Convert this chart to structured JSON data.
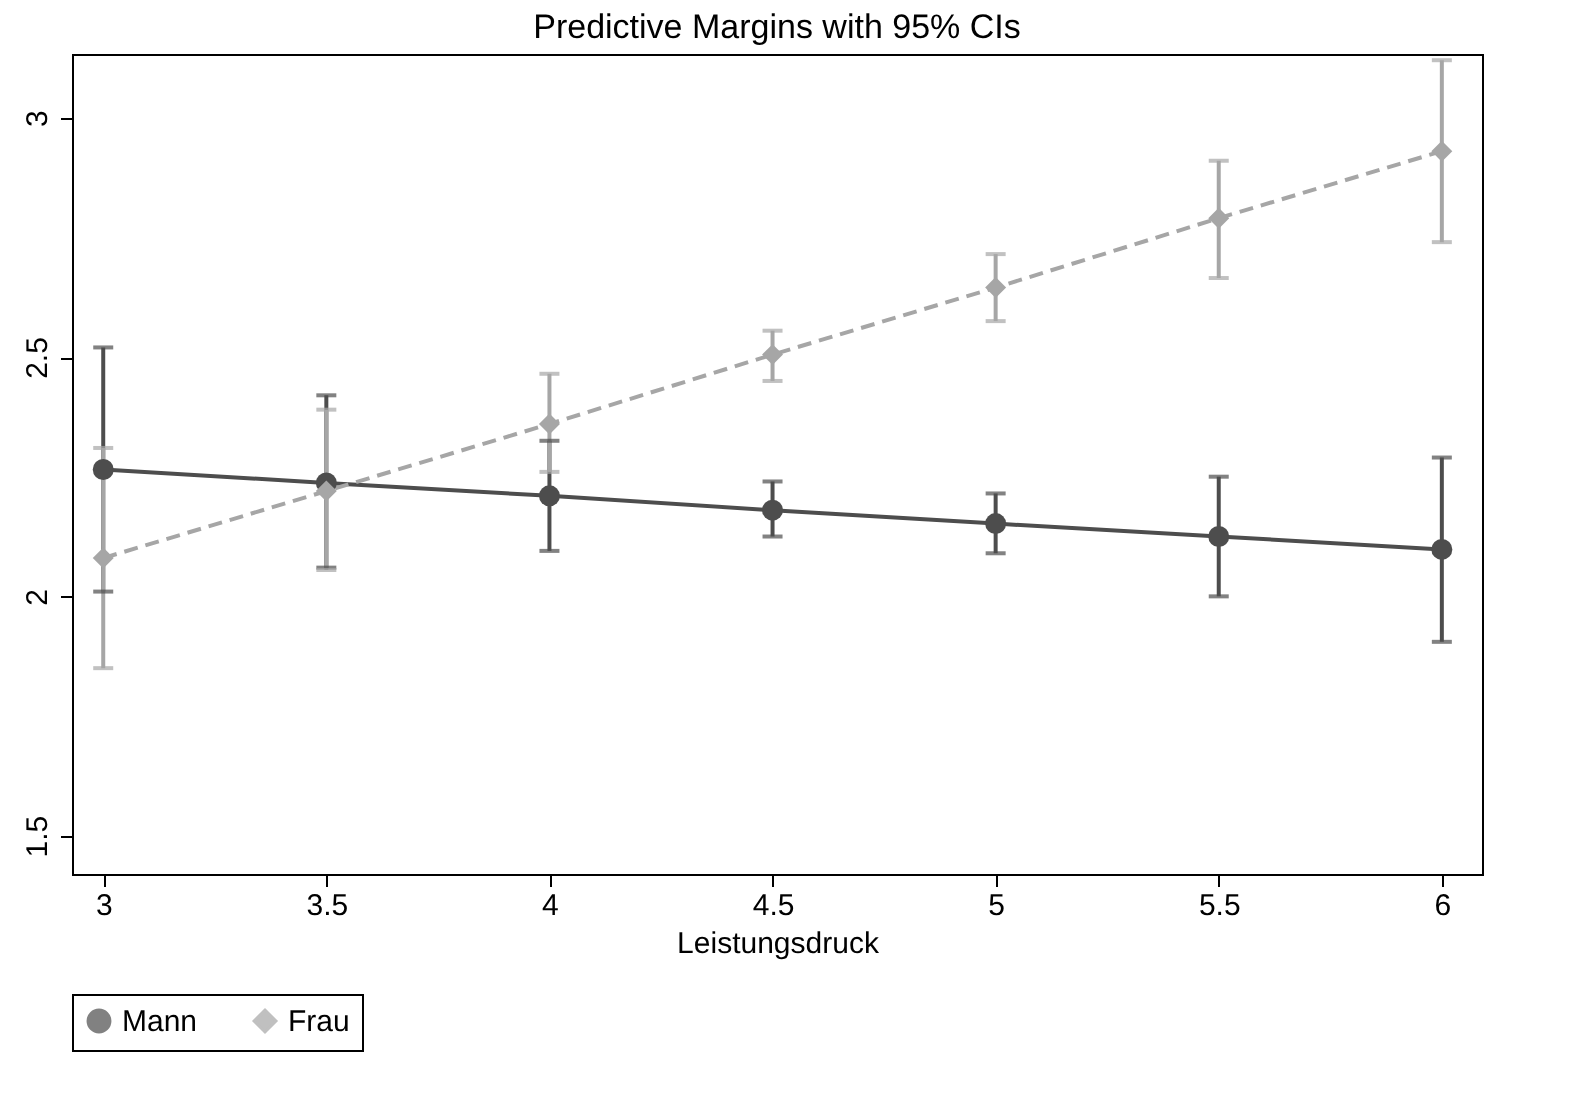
{
  "chart_data": {
    "type": "line",
    "title": "Predictive Margins with 95% CIs",
    "xlabel": "Leistungsdruck",
    "x": [
      3,
      3.5,
      4,
      4.5,
      5,
      5.5,
      6
    ],
    "series": [
      {
        "name": "Mann",
        "color": "#4d4d4d",
        "marker": "circle",
        "line_style": "solid",
        "values": [
          2.265,
          2.237,
          2.21,
          2.18,
          2.152,
          2.125,
          2.098
        ],
        "errors": [
          [
            2.01,
            2.52
          ],
          [
            2.06,
            2.42
          ],
          [
            2.095,
            2.325
          ],
          [
            2.125,
            2.24
          ],
          [
            2.09,
            2.215
          ],
          [
            2.0,
            2.25
          ],
          [
            1.905,
            2.29
          ]
        ]
      },
      {
        "name": "Frau",
        "color": "#a6a6a6",
        "marker": "diamond",
        "line_style": "dashed",
        "values": [
          2.08,
          2.22,
          2.36,
          2.505,
          2.645,
          2.79,
          2.93
        ],
        "errors": [
          [
            1.85,
            2.31
          ],
          [
            2.055,
            2.39
          ],
          [
            2.26,
            2.465
          ],
          [
            2.45,
            2.555
          ],
          [
            2.575,
            2.715
          ],
          [
            2.665,
            2.91
          ],
          [
            2.74,
            3.12
          ]
        ]
      }
    ],
    "xlim": [
      2.93,
      6.09
    ],
    "xticks": [
      3,
      3.5,
      4,
      4.5,
      5,
      5.5,
      6
    ],
    "ylim": [
      1.42,
      3.133
    ],
    "yticks": [
      1.5,
      2,
      2.5,
      3
    ],
    "grid": false,
    "legend": "bottom"
  }
}
